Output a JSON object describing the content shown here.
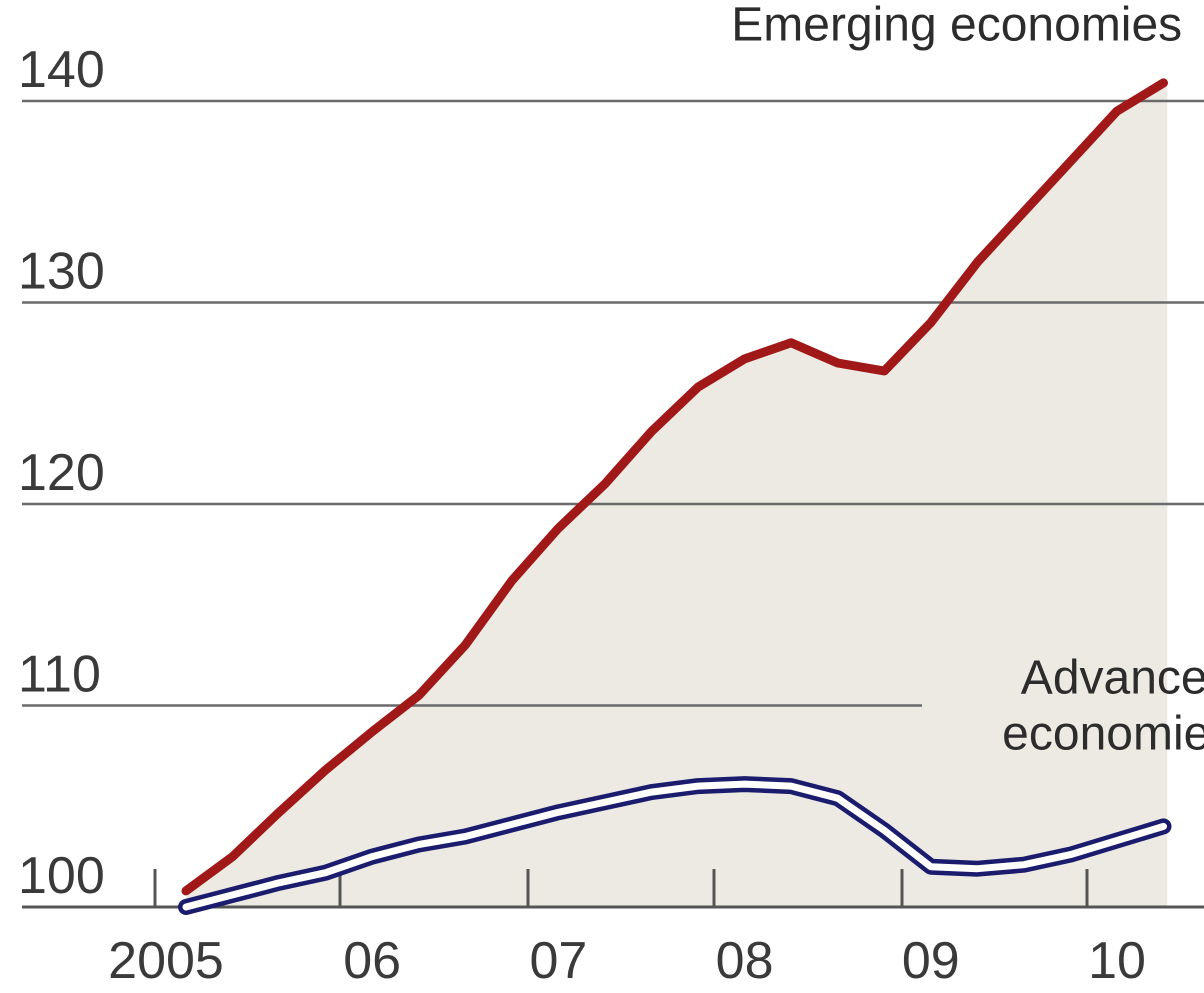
{
  "chart_data": {
    "type": "line",
    "title": "",
    "xlabel": "",
    "ylabel": "",
    "ylim": [
      100,
      142
    ],
    "xlim": [
      2004.85,
      2010.5
    ],
    "grid": "horizontal",
    "y_ticks": [
      {
        "value": 100,
        "label": "100"
      },
      {
        "value": 110,
        "label": "110"
      },
      {
        "value": 120,
        "label": "120"
      },
      {
        "value": 130,
        "label": "130"
      },
      {
        "value": 140,
        "label": "140"
      }
    ],
    "x_ticks": [
      {
        "value": 2005,
        "label": "2005"
      },
      {
        "value": 2006,
        "label": "06"
      },
      {
        "value": 2007,
        "label": "07"
      },
      {
        "value": 2008,
        "label": "08"
      },
      {
        "value": 2009,
        "label": "09"
      },
      {
        "value": 2010,
        "label": "10"
      }
    ],
    "series": [
      {
        "name": "Emerging economies",
        "color": "#a01818",
        "style": "solid",
        "x": [
          2005.0,
          2005.25,
          2005.5,
          2005.75,
          2006.0,
          2006.25,
          2006.5,
          2006.75,
          2007.0,
          2007.25,
          2007.5,
          2007.75,
          2008.0,
          2008.25,
          2008.5,
          2008.75,
          2009.0,
          2009.25,
          2009.5,
          2009.75,
          2010.0,
          2010.25
        ],
        "values": [
          100.8,
          102.5,
          104.7,
          106.8,
          108.7,
          110.5,
          113.0,
          116.2,
          118.8,
          121.0,
          123.6,
          125.8,
          127.2,
          128.0,
          127.0,
          126.6,
          129.0,
          132.0,
          134.5,
          137.0,
          139.5,
          140.9
        ]
      },
      {
        "name": "Advanced economies",
        "color": "#1c1c6e",
        "style": "double",
        "x": [
          2005.0,
          2005.25,
          2005.5,
          2005.75,
          2006.0,
          2006.25,
          2006.5,
          2006.75,
          2007.0,
          2007.25,
          2007.5,
          2007.75,
          2008.0,
          2008.25,
          2008.5,
          2008.75,
          2009.0,
          2009.25,
          2009.5,
          2009.75,
          2010.0,
          2010.25
        ],
        "values": [
          100.0,
          100.6,
          101.2,
          101.7,
          102.5,
          103.1,
          103.5,
          104.1,
          104.7,
          105.2,
          105.7,
          106.0,
          106.1,
          106.0,
          105.4,
          103.8,
          102.0,
          101.9,
          102.1,
          102.6,
          103.3,
          104.0
        ]
      }
    ],
    "annotations": [
      {
        "lines": [
          "Emerging economies"
        ],
        "x": 2010.35,
        "y": 143.0,
        "anchor": "end"
      },
      {
        "lines": [
          "Advanced",
          "economies"
        ],
        "x": 2010.63,
        "y": 110.6,
        "anchor": "end"
      }
    ],
    "shaded_region": {
      "x_from": 2005.0,
      "x_to": 2010.27,
      "y_to": 140.9,
      "color": "#eceae2"
    }
  }
}
